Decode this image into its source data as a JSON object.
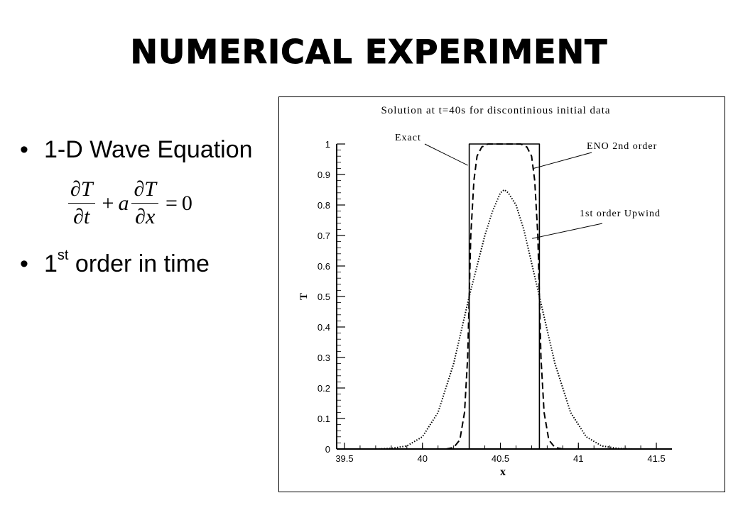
{
  "slide": {
    "title": "NUMERICAL EXPERIMENT",
    "bullets": [
      {
        "symbol": "•",
        "text": "1-D Wave Equation"
      },
      {
        "symbol": "•",
        "text_main": "1",
        "text_sup": "st",
        "text_rest": " order in time"
      }
    ],
    "equation": {
      "d1_num": "∂T",
      "d1_den": "∂t",
      "plus": "+",
      "coef": "a",
      "d2_num": "∂T",
      "d2_den": "∂x",
      "equals": "=",
      "rhs": "0"
    }
  },
  "chart_data": {
    "type": "line",
    "title": "Solution at t=40s for discontinious initial data",
    "xlabel": "x",
    "ylabel": "T",
    "xlim": [
      39.45,
      41.6
    ],
    "ylim": [
      0,
      1
    ],
    "x_ticks": [
      39.5,
      40,
      40.5,
      41,
      41.5
    ],
    "x_tick_labels": [
      "39.5",
      "40",
      "40.5",
      "41",
      "41.5"
    ],
    "y_ticks": [
      0,
      0.1,
      0.2,
      0.3,
      0.4,
      0.5,
      0.6,
      0.7,
      0.8,
      0.9,
      1
    ],
    "y_tick_labels": [
      "0",
      "0.1",
      "0.2",
      "0.3",
      "0.4",
      "0.5",
      "0.6",
      "0.7",
      "0.8",
      "0.9",
      "1"
    ],
    "grid": false,
    "series": [
      {
        "name": "Exact",
        "style": "solid",
        "x": [
          39.45,
          40.3,
          40.3,
          40.75,
          40.75,
          41.6
        ],
        "y": [
          0,
          0,
          1,
          1,
          0,
          0
        ]
      },
      {
        "name": "ENO 2nd order",
        "style": "dashed",
        "x": [
          39.45,
          40.15,
          40.2,
          40.24,
          40.27,
          40.29,
          40.3,
          40.31,
          40.33,
          40.35,
          40.38,
          40.42,
          40.5,
          40.63,
          40.67,
          40.7,
          40.72,
          40.74,
          40.75,
          40.76,
          40.78,
          40.81,
          40.85,
          40.9,
          41.6
        ],
        "y": [
          0,
          0,
          0.005,
          0.03,
          0.12,
          0.3,
          0.5,
          0.7,
          0.88,
          0.96,
          0.99,
          1.0,
          1.0,
          1.0,
          0.99,
          0.96,
          0.88,
          0.7,
          0.5,
          0.3,
          0.12,
          0.03,
          0.005,
          0,
          0
        ]
      },
      {
        "name": "1st order Upwind",
        "style": "dotted",
        "x": [
          39.45,
          39.7,
          39.8,
          39.9,
          40.0,
          40.1,
          40.2,
          40.3,
          40.4,
          40.45,
          40.5,
          40.525,
          40.55,
          40.6,
          40.65,
          40.75,
          40.85,
          40.95,
          41.05,
          41.15,
          41.25,
          41.35,
          41.6
        ],
        "y": [
          0,
          0,
          0.002,
          0.01,
          0.04,
          0.12,
          0.28,
          0.5,
          0.7,
          0.78,
          0.84,
          0.85,
          0.84,
          0.8,
          0.72,
          0.5,
          0.28,
          0.12,
          0.04,
          0.01,
          0.002,
          0,
          0
        ]
      }
    ],
    "annotations": [
      {
        "text": "Exact",
        "x": 40.15,
        "y": 1.0
      },
      {
        "text": "ENO 2nd order",
        "x": 40.75,
        "y": 0.93
      },
      {
        "text": "1st order Upwind",
        "x": 40.74,
        "y": 0.69
      }
    ]
  }
}
